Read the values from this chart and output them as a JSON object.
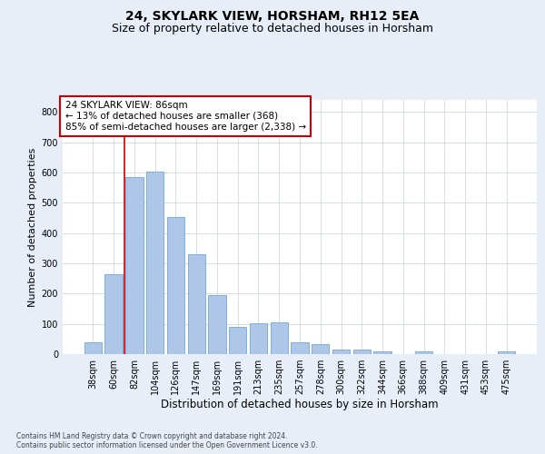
{
  "title1": "24, SKYLARK VIEW, HORSHAM, RH12 5EA",
  "title2": "Size of property relative to detached houses in Horsham",
  "xlabel": "Distribution of detached houses by size in Horsham",
  "ylabel": "Number of detached properties",
  "footnote": "Contains HM Land Registry data © Crown copyright and database right 2024.\nContains public sector information licensed under the Open Government Licence v3.0.",
  "categories": [
    "38sqm",
    "60sqm",
    "82sqm",
    "104sqm",
    "126sqm",
    "147sqm",
    "169sqm",
    "191sqm",
    "213sqm",
    "235sqm",
    "257sqm",
    "278sqm",
    "300sqm",
    "322sqm",
    "344sqm",
    "366sqm",
    "388sqm",
    "409sqm",
    "431sqm",
    "453sqm",
    "475sqm"
  ],
  "values": [
    38,
    265,
    585,
    602,
    452,
    330,
    195,
    90,
    102,
    105,
    38,
    32,
    15,
    15,
    10,
    0,
    8,
    0,
    0,
    0,
    8
  ],
  "bar_color": "#aec6e8",
  "bar_edge_color": "#5b9bd5",
  "annotation_text": "24 SKYLARK VIEW: 86sqm\n← 13% of detached houses are smaller (368)\n85% of semi-detached houses are larger (2,338) →",
  "annotation_box_color": "#ffffff",
  "annotation_box_edge_color": "#cc0000",
  "vline_color": "#cc0000",
  "ylim": [
    0,
    840
  ],
  "yticks": [
    0,
    100,
    200,
    300,
    400,
    500,
    600,
    700,
    800
  ],
  "background_color": "#e8eef7",
  "plot_background": "#ffffff",
  "grid_color": "#c8d0dc",
  "title1_fontsize": 10,
  "title2_fontsize": 9,
  "xlabel_fontsize": 8.5,
  "ylabel_fontsize": 8,
  "tick_fontsize": 7,
  "annot_fontsize": 7.5,
  "footnote_fontsize": 5.5
}
